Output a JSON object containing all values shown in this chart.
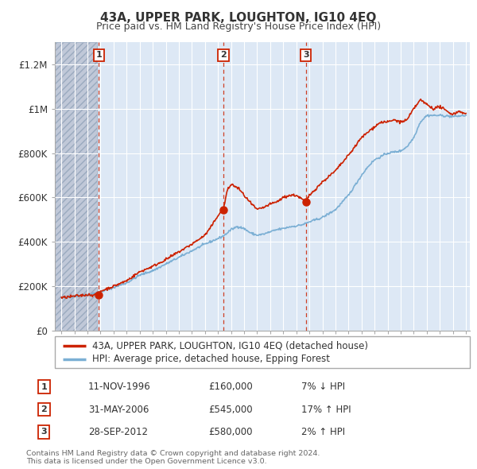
{
  "title": "43A, UPPER PARK, LOUGHTON, IG10 4EQ",
  "subtitle": "Price paid vs. HM Land Registry's House Price Index (HPI)",
  "legend_line1": "43A, UPPER PARK, LOUGHTON, IG10 4EQ (detached house)",
  "legend_line2": "HPI: Average price, detached house, Epping Forest",
  "transactions": [
    {
      "num": 1,
      "date": "11-NOV-1996",
      "price": "£160,000",
      "hpi": "7% ↓ HPI",
      "year": 1996.87
    },
    {
      "num": 2,
      "date": "31-MAY-2006",
      "price": "£545,000",
      "hpi": "17% ↑ HPI",
      "year": 2006.41
    },
    {
      "num": 3,
      "date": "28-SEP-2012",
      "price": "£580,000",
      "hpi": "2% ↑ HPI",
      "year": 2012.74
    }
  ],
  "sale_prices": [
    160000,
    545000,
    580000
  ],
  "footnote1": "Contains HM Land Registry data © Crown copyright and database right 2024.",
  "footnote2": "This data is licensed under the Open Government Licence v3.0.",
  "hpi_color": "#7bafd4",
  "price_color": "#cc2200",
  "bg_color": "#dde8f5",
  "hatch_color": "#c0c8d8",
  "ylim": [
    0,
    1300000
  ],
  "xlim_start": 1993.5,
  "xlim_end": 2025.3,
  "hatch_end": 1996.7,
  "yticks": [
    0,
    200000,
    400000,
    600000,
    800000,
    1000000,
    1200000
  ],
  "ytick_labels": [
    "£0",
    "£200K",
    "£400K",
    "£600K",
    "£800K",
    "£1M",
    "£1.2M"
  ],
  "xticks": [
    1994,
    1995,
    1996,
    1997,
    1998,
    1999,
    2000,
    2001,
    2002,
    2003,
    2004,
    2005,
    2006,
    2007,
    2008,
    2009,
    2010,
    2011,
    2012,
    2013,
    2014,
    2015,
    2016,
    2017,
    2018,
    2019,
    2020,
    2021,
    2022,
    2023,
    2024,
    2025
  ]
}
